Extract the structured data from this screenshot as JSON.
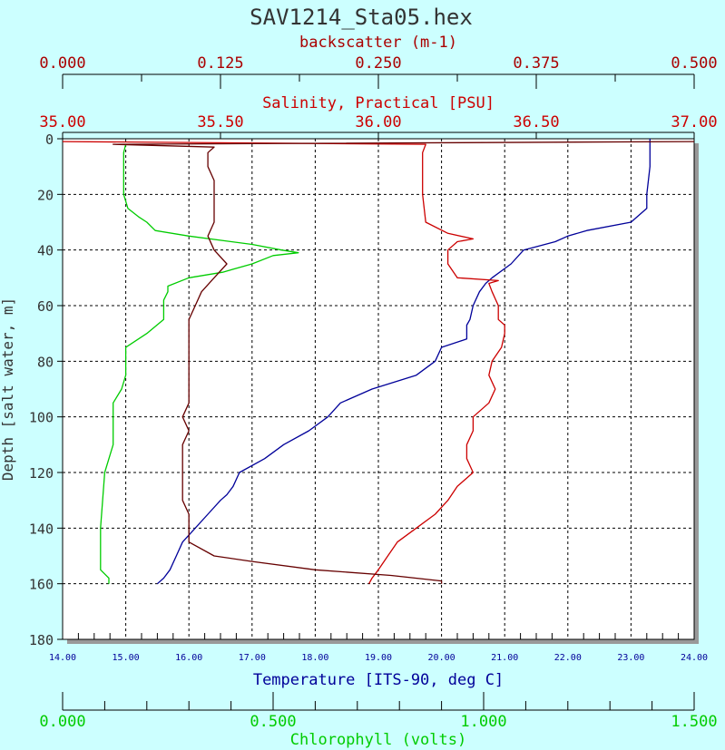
{
  "chart_data": {
    "type": "line",
    "title": "SAV1214_Sta05.hex",
    "colors": {
      "background": "#ccffff",
      "plot_bg": "#ffffff",
      "backscatter": "#aa0000",
      "salinity": "#cc0000",
      "temperature": "#000099",
      "chlorophyll": "#00cc00",
      "backscatter_trace": "#660000"
    },
    "y_axis": {
      "label": "Depth [salt water, m]",
      "range": [
        0,
        180
      ],
      "inverted": true,
      "ticks": [
        "0",
        "20",
        "40",
        "60",
        "80",
        "100",
        "120",
        "140",
        "160",
        "180"
      ]
    },
    "axes": [
      {
        "key": "backscatter",
        "label": "backscatter (m-1)",
        "range": [
          0,
          0.5
        ],
        "ticks": [
          "0.000",
          "0.125",
          "0.250",
          "0.375",
          "0.500"
        ]
      },
      {
        "key": "salinity",
        "label": "Salinity, Practical [PSU]",
        "range": [
          35,
          37
        ],
        "ticks": [
          "35.00",
          "35.50",
          "36.00",
          "36.50",
          "37.00"
        ]
      },
      {
        "key": "temperature",
        "label": "Temperature [ITS-90, deg C]",
        "range": [
          14,
          24
        ],
        "ticks": [
          "14.00",
          "15.00",
          "16.00",
          "17.00",
          "18.00",
          "19.00",
          "20.00",
          "21.00",
          "22.00",
          "23.00",
          "24.00"
        ]
      },
      {
        "key": "chlorophyll",
        "label": "Chlorophyll (volts)",
        "range": [
          0,
          1.5
        ],
        "ticks": [
          "0.000",
          "0.500",
          "1.000",
          "1.500"
        ]
      }
    ],
    "series": [
      {
        "key": "temperature",
        "depth": [
          0,
          2,
          10,
          20,
          25,
          30,
          33,
          35,
          37,
          40,
          45,
          50,
          52,
          55,
          60,
          65,
          67,
          72,
          75,
          80,
          85,
          90,
          95,
          100,
          105,
          110,
          115,
          120,
          125,
          128,
          130,
          135,
          140,
          145,
          150,
          155,
          158,
          160
        ],
        "values": [
          23.3,
          23.3,
          23.3,
          23.25,
          23.25,
          23.0,
          22.3,
          22.0,
          21.8,
          21.3,
          21.1,
          20.8,
          20.7,
          20.6,
          20.5,
          20.45,
          20.4,
          20.4,
          20.0,
          19.9,
          19.6,
          18.9,
          18.4,
          18.2,
          17.9,
          17.5,
          17.2,
          16.8,
          16.7,
          16.6,
          16.5,
          16.3,
          16.1,
          15.9,
          15.8,
          15.7,
          15.6,
          15.5
        ]
      },
      {
        "key": "salinity",
        "depth": [
          1,
          2,
          5,
          20,
          30,
          34,
          36,
          37,
          40,
          45,
          50,
          51,
          52,
          55,
          60,
          65,
          67,
          70,
          75,
          80,
          85,
          90,
          95,
          100,
          105,
          110,
          115,
          120,
          125,
          130,
          135,
          140,
          145,
          150,
          155,
          158,
          160
        ],
        "values": [
          35.0,
          36.15,
          36.14,
          36.14,
          36.15,
          36.22,
          36.3,
          36.25,
          36.22,
          36.22,
          36.25,
          36.38,
          36.35,
          36.36,
          36.38,
          36.38,
          36.4,
          36.4,
          36.39,
          36.36,
          36.35,
          36.37,
          36.35,
          36.3,
          36.3,
          36.28,
          36.28,
          36.3,
          36.25,
          36.22,
          36.18,
          36.12,
          36.06,
          36.03,
          36.0,
          35.98,
          35.97
        ]
      },
      {
        "key": "chlorophyll",
        "depth": [
          2,
          5,
          10,
          20,
          25,
          28,
          30,
          33,
          35,
          38,
          40,
          41,
          42,
          45,
          48,
          50,
          53,
          55,
          58,
          60,
          65,
          70,
          75,
          80,
          85,
          90,
          95,
          100,
          110,
          120,
          130,
          140,
          150,
          155,
          158,
          160
        ],
        "values": [
          0.15,
          0.145,
          0.145,
          0.145,
          0.155,
          0.18,
          0.2,
          0.22,
          0.3,
          0.45,
          0.52,
          0.56,
          0.5,
          0.45,
          0.38,
          0.3,
          0.25,
          0.25,
          0.24,
          0.24,
          0.24,
          0.2,
          0.15,
          0.15,
          0.15,
          0.14,
          0.12,
          0.12,
          0.12,
          0.1,
          0.095,
          0.09,
          0.09,
          0.09,
          0.11,
          0.11
        ]
      },
      {
        "key": "backscatter",
        "depth": [
          1,
          2,
          3,
          5,
          10,
          15,
          20,
          25,
          30,
          35,
          40,
          45,
          50,
          55,
          60,
          65,
          70,
          75,
          80,
          85,
          90,
          95,
          100,
          105,
          110,
          115,
          120,
          125,
          130,
          135,
          140,
          145,
          150,
          152,
          155,
          157,
          159,
          160
        ],
        "values": [
          0.5,
          0.04,
          0.12,
          0.115,
          0.115,
          0.12,
          0.12,
          0.12,
          0.12,
          0.115,
          0.12,
          0.13,
          0.12,
          0.11,
          0.105,
          0.1,
          0.1,
          0.1,
          0.1,
          0.1,
          0.1,
          0.1,
          0.095,
          0.1,
          0.095,
          0.095,
          0.095,
          0.095,
          0.095,
          0.1,
          0.1,
          0.1,
          0.12,
          0.15,
          0.2,
          0.26,
          0.3,
          0.3
        ]
      }
    ],
    "grid": true
  }
}
